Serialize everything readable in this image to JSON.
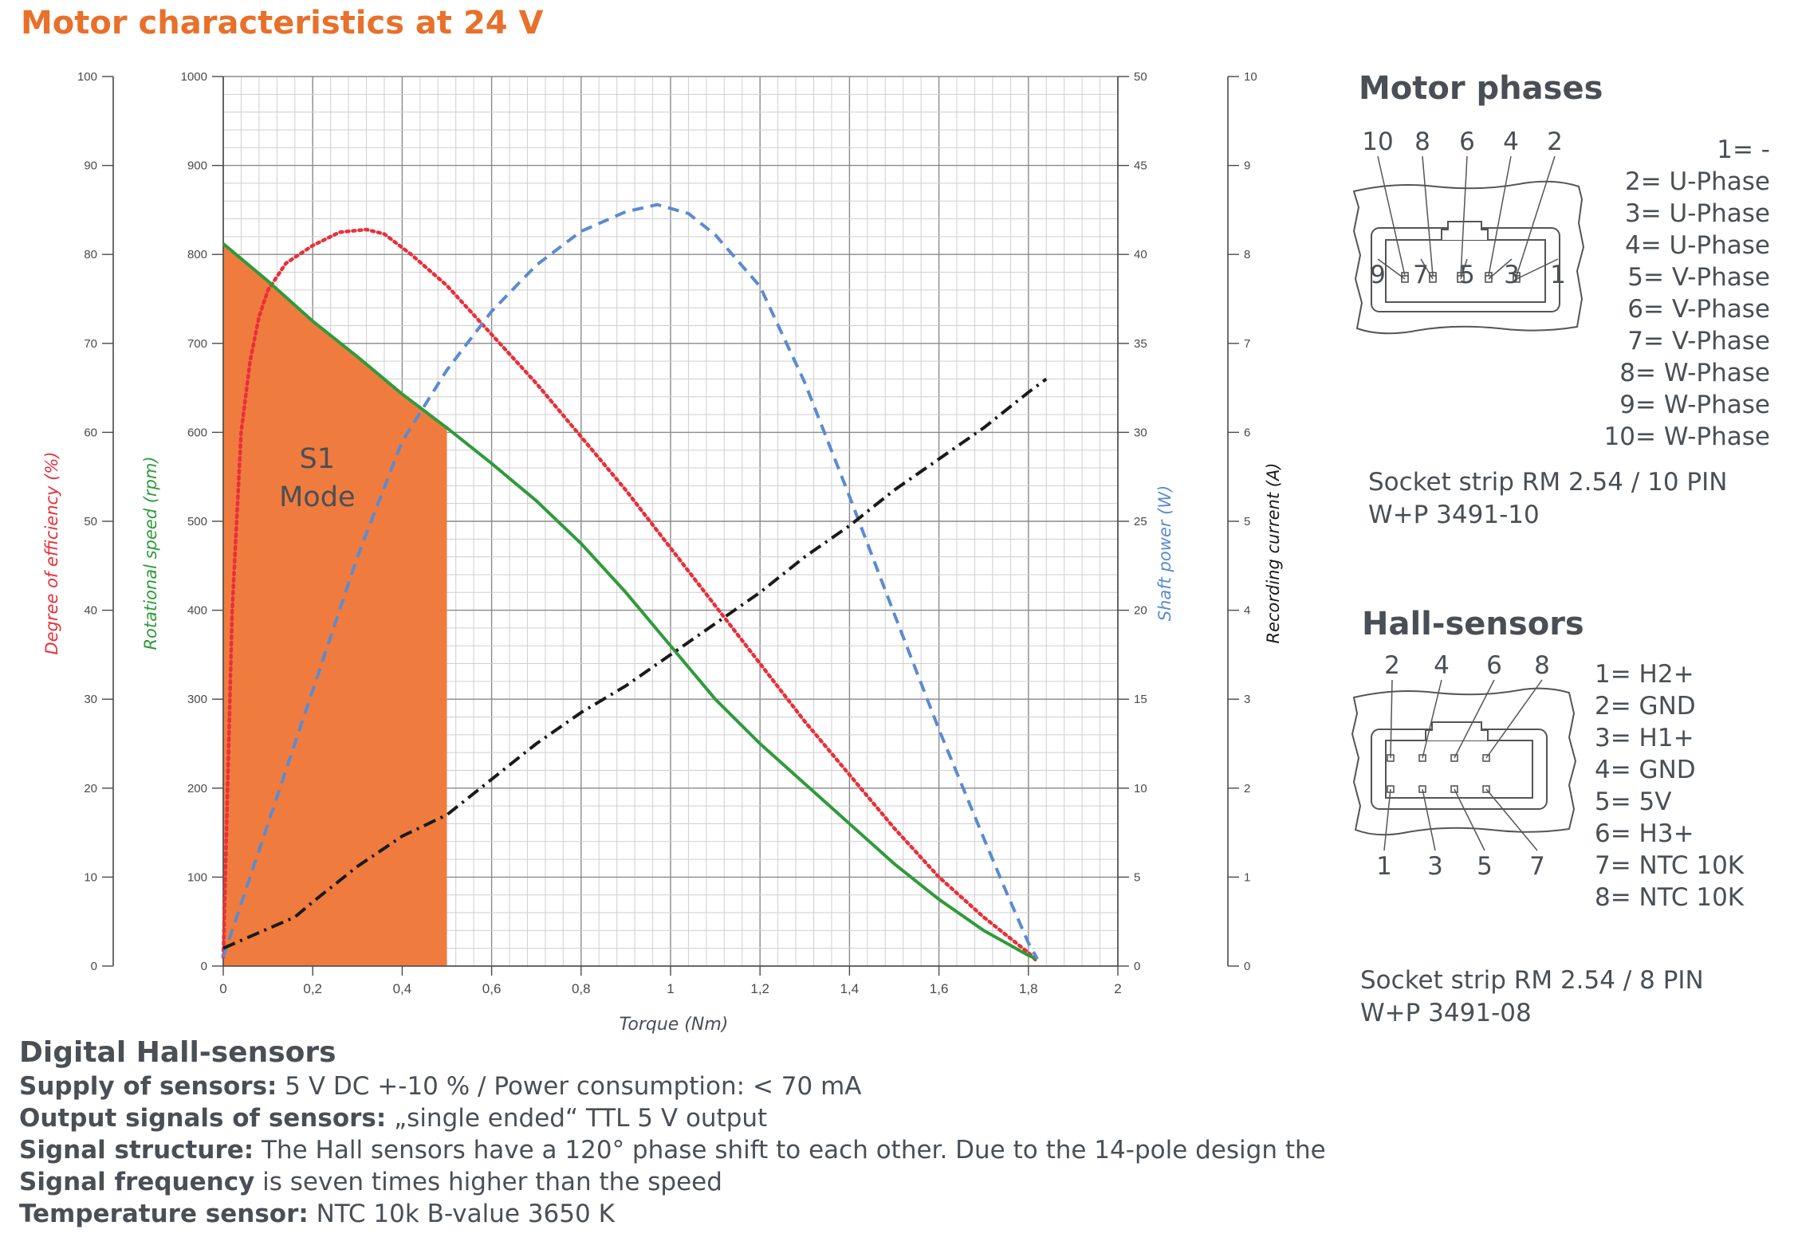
{
  "title": "Motor characteristics at 24 V",
  "chart_data": {
    "type": "line",
    "xlabel": "Torque (Nm)",
    "xlim": [
      0,
      2
    ],
    "x_ticks": [
      "0",
      "0,2",
      "0,4",
      "0,6",
      "0,8",
      "1",
      "1,2",
      "1,4",
      "1,6",
      "1,8",
      "2"
    ],
    "axes": [
      {
        "id": "efficiency",
        "label": "Degree of efficiency  (%)",
        "side": "left-outer",
        "range": [
          0,
          100
        ],
        "ticks": [
          "0",
          "10",
          "20",
          "30",
          "40",
          "50",
          "60",
          "70",
          "80",
          "90",
          "100"
        ],
        "color": "#e8303a"
      },
      {
        "id": "speed",
        "label": "Rotational speed (rpm)",
        "side": "left-inner",
        "range": [
          0,
          1000
        ],
        "ticks": [
          "0",
          "100",
          "200",
          "300",
          "400",
          "500",
          "600",
          "700",
          "800",
          "900",
          "1000"
        ],
        "color": "#2e9b3a"
      },
      {
        "id": "power",
        "label": "Shaft power (W)",
        "side": "right-inner",
        "range": [
          0,
          50
        ],
        "ticks": [
          "0",
          "5",
          "10",
          "15",
          "20",
          "25",
          "30",
          "35",
          "40",
          "45",
          "50"
        ],
        "color": "#5b8bd0"
      },
      {
        "id": "current",
        "label": "Recording current (A)",
        "side": "right-outer",
        "range": [
          0,
          10
        ],
        "ticks": [
          "0",
          "1",
          "2",
          "3",
          "4",
          "5",
          "6",
          "7",
          "8",
          "9",
          "10"
        ],
        "color": "#1a1a1a"
      }
    ],
    "series": [
      {
        "axis": "efficiency",
        "style": "dotted",
        "color": "#e8303a",
        "x": [
          0,
          0.02,
          0.04,
          0.06,
          0.08,
          0.1,
          0.14,
          0.2,
          0.26,
          0.32,
          0.36,
          0.42,
          0.5,
          0.6,
          0.7,
          0.8,
          0.9,
          1.0,
          1.1,
          1.2,
          1.3,
          1.4,
          1.5,
          1.6,
          1.7,
          1.8,
          1.82
        ],
        "y": [
          1,
          40,
          60,
          68,
          73,
          76,
          79,
          81,
          82.5,
          82.8,
          82.3,
          80,
          76.5,
          71,
          65.5,
          59.5,
          53.5,
          47,
          40.5,
          34,
          27.5,
          21.5,
          15.5,
          10,
          5.5,
          1.5,
          0.5
        ]
      },
      {
        "axis": "speed",
        "style": "solid",
        "color": "#2e9b3a",
        "x": [
          0,
          0.1,
          0.2,
          0.3,
          0.4,
          0.5,
          0.6,
          0.7,
          0.8,
          0.9,
          1.0,
          1.1,
          1.2,
          1.3,
          1.4,
          1.5,
          1.6,
          1.7,
          1.8,
          1.82
        ],
        "y": [
          812,
          770,
          725,
          685,
          643,
          605,
          565,
          523,
          475,
          420,
          360,
          300,
          250,
          205,
          160,
          115,
          75,
          40,
          12,
          8
        ]
      },
      {
        "axis": "power",
        "style": "dashed",
        "color": "#5b8bd0",
        "x": [
          0,
          0.1,
          0.2,
          0.3,
          0.4,
          0.5,
          0.6,
          0.7,
          0.8,
          0.9,
          0.97,
          1.04,
          1.1,
          1.2,
          1.3,
          1.4,
          1.5,
          1.6,
          1.7,
          1.75,
          1.8,
          1.82
        ],
        "y": [
          0.5,
          8,
          15.5,
          23,
          29.5,
          33.5,
          36.8,
          39.4,
          41.3,
          42.4,
          42.8,
          42.3,
          41.1,
          38.2,
          32.8,
          26.4,
          19.8,
          13.3,
          7.2,
          4.2,
          1.3,
          0.4
        ]
      },
      {
        "axis": "current",
        "style": "dashdot",
        "color": "#1a1a1a",
        "x": [
          0,
          0.1,
          0.16,
          0.2,
          0.3,
          0.4,
          0.5,
          0.6,
          0.7,
          0.8,
          0.9,
          1.0,
          1.1,
          1.2,
          1.3,
          1.4,
          1.5,
          1.6,
          1.7,
          1.8,
          1.84
        ],
        "y": [
          0.2,
          0.42,
          0.55,
          0.72,
          1.12,
          1.46,
          1.7,
          2.1,
          2.5,
          2.85,
          3.15,
          3.5,
          3.85,
          4.2,
          4.6,
          4.95,
          5.35,
          5.7,
          6.05,
          6.45,
          6.6
        ]
      }
    ],
    "region": {
      "label_line1": "S1",
      "label_line2": "Mode",
      "x_from": 0,
      "x_to": 0.5,
      "color": "#f07b3f",
      "x": [
        0,
        0.1,
        0.2,
        0.3,
        0.4,
        0.5
      ],
      "y": [
        812,
        770,
        725,
        685,
        643,
        605
      ]
    },
    "grid": true
  },
  "motor_phases": {
    "heading": "Motor phases",
    "top_pins": [
      "10",
      "8",
      "6",
      "4",
      "2"
    ],
    "bottom_pins": [
      "9",
      "7",
      "5",
      "3",
      "1"
    ],
    "pin_list": [
      "1= -",
      "2= U-Phase",
      "3= U-Phase",
      "4= U-Phase",
      "5= V-Phase",
      "6= V-Phase",
      "7= V-Phase",
      "8= W-Phase",
      "9= W-Phase",
      "10= W-Phase"
    ],
    "socket_line1": "Socket strip RM 2.54 / 10 PIN",
    "socket_line2": "W+P 3491-10"
  },
  "hall_sensors": {
    "heading": "Hall-sensors",
    "top_pins": [
      "2",
      "4",
      "6",
      "8"
    ],
    "bottom_pins": [
      "1",
      "3",
      "5",
      "7"
    ],
    "pin_list": [
      "1= H2+",
      "2= GND",
      "3= H1+",
      "4= GND",
      "5= 5V",
      "6= H3+",
      "7= NTC 10K",
      "8= NTC 10K"
    ],
    "socket_line1": "Socket strip RM 2.54 / 8 PIN",
    "socket_line2": "W+P 3491-08"
  },
  "hall_info": {
    "heading": "Digital Hall-sensors",
    "lines": [
      {
        "label": "Supply of sensors:",
        "text": " 5 V DC +-10 % / Power consumption: < 70 mA"
      },
      {
        "label": "Output signals of sensors:",
        "text": " „single ended“ TTL 5 V output"
      },
      {
        "label": "Signal structure:",
        "text": " The Hall sensors have a 120° phase shift to each other. Due to the 14-pole design the"
      },
      {
        "label": "Signal frequency",
        "text": " is seven times higher than the speed"
      },
      {
        "label": "Temperature sensor:",
        "text": " NTC 10k B-value 3650 K"
      }
    ]
  }
}
